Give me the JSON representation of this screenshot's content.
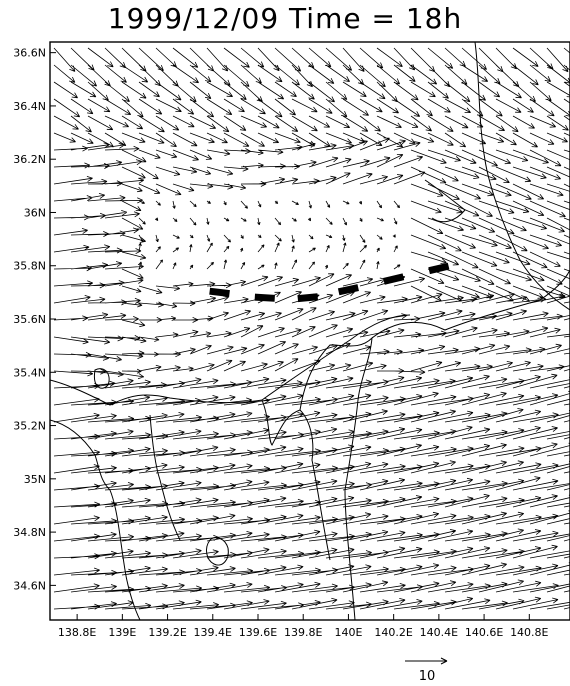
{
  "title": "1999/12/09 Time = 18h",
  "map": {
    "lon_range": [
      138.68,
      140.98
    ],
    "lat_range": [
      34.47,
      36.64
    ],
    "x_ticks": [
      "138.8E",
      "139E",
      "139.2E",
      "139.4E",
      "139.6E",
      "139.8E",
      "140E",
      "140.2E",
      "140.4E",
      "140.6E",
      "140.8E"
    ],
    "x_tick_values": [
      138.8,
      139.0,
      139.2,
      139.4,
      139.6,
      139.8,
      140.0,
      140.2,
      140.4,
      140.6,
      140.8
    ],
    "y_ticks": [
      "36.6N",
      "36.4N",
      "36.2N",
      "36N",
      "35.8N",
      "35.6N",
      "35.4N",
      "35.2N",
      "35N",
      "34.8N",
      "34.6N"
    ],
    "y_tick_values": [
      36.6,
      36.4,
      36.2,
      36.0,
      35.8,
      35.6,
      35.4,
      35.2,
      35.0,
      34.8,
      34.6
    ],
    "field": "wind vectors",
    "convergence_line_segments": [
      {
        "lon": 139.43,
        "lat": 35.7
      },
      {
        "lon": 139.63,
        "lat": 35.68
      },
      {
        "lon": 139.82,
        "lat": 35.68
      },
      {
        "lon": 140.0,
        "lat": 35.71
      },
      {
        "lon": 140.2,
        "lat": 35.75
      },
      {
        "lon": 140.4,
        "lat": 35.79
      }
    ],
    "colors": {
      "vectors": "#000000",
      "coast": "#000000",
      "convergence": "#000000",
      "background": "#ffffff"
    }
  },
  "reference_vector": {
    "label": "10",
    "magnitude": 10
  }
}
